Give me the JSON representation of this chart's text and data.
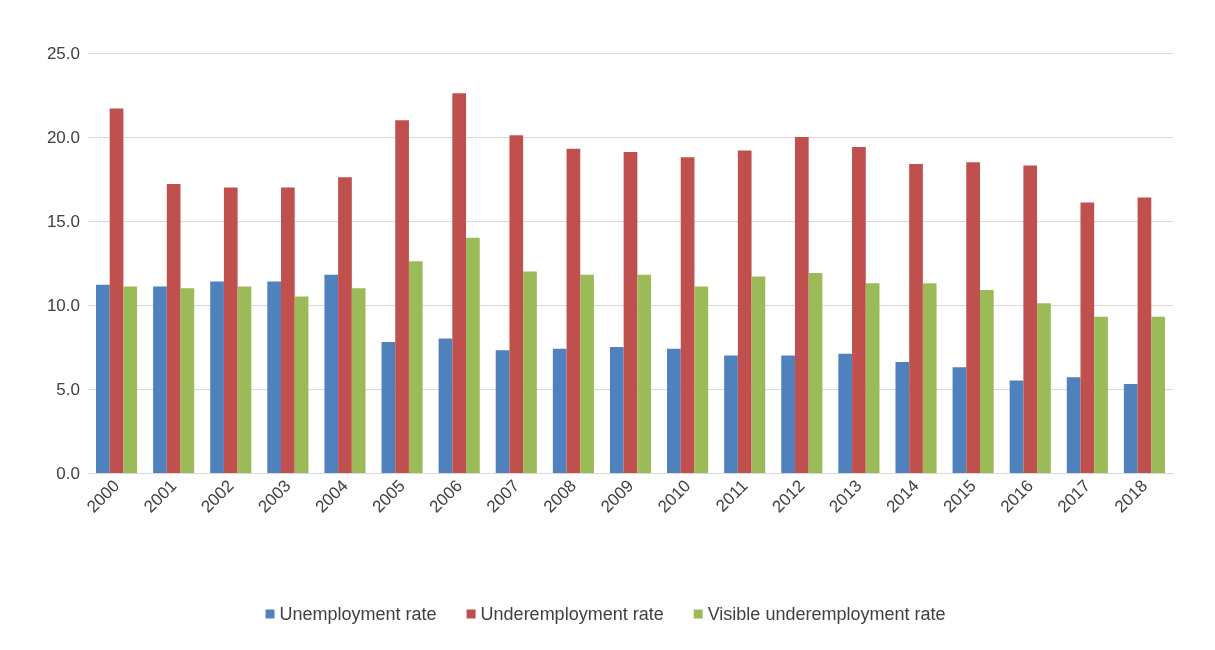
{
  "chart_data": {
    "type": "bar",
    "categories": [
      "2000",
      "2001",
      "2002",
      "2003",
      "2004",
      "2005",
      "2006",
      "2007",
      "2008",
      "2009",
      "2010",
      "2011",
      "2012",
      "2013",
      "2014",
      "2015",
      "2016",
      "2017",
      "2018"
    ],
    "series": [
      {
        "name": "Unemployment rate",
        "color": "#4f81bd",
        "values": [
          11.2,
          11.1,
          11.4,
          11.4,
          11.8,
          7.8,
          8.0,
          7.3,
          7.4,
          7.5,
          7.4,
          7.0,
          7.0,
          7.1,
          6.6,
          6.3,
          5.5,
          5.7,
          5.3
        ]
      },
      {
        "name": "Underemployment rate",
        "color": "#c0504d",
        "values": [
          21.7,
          17.2,
          17.0,
          17.0,
          17.6,
          21.0,
          22.6,
          20.1,
          19.3,
          19.1,
          18.8,
          19.2,
          20.0,
          19.4,
          18.4,
          18.5,
          18.3,
          16.1,
          16.4
        ]
      },
      {
        "name": "Visible underemployment rate",
        "color": "#9bbb59",
        "values": [
          11.1,
          11.0,
          11.1,
          10.5,
          11.0,
          12.6,
          14.0,
          12.0,
          11.8,
          11.8,
          11.1,
          11.7,
          11.9,
          11.3,
          11.3,
          10.9,
          10.1,
          9.3,
          9.3
        ]
      }
    ],
    "ylim": [
      0,
      25
    ],
    "yticks": [
      {
        "value": 0,
        "label": "0.0"
      },
      {
        "value": 5,
        "label": "5.0"
      },
      {
        "value": 10,
        "label": "10.0"
      },
      {
        "value": 15,
        "label": "15.0"
      },
      {
        "value": 20,
        "label": "20.0"
      },
      {
        "value": 25,
        "label": "25.0"
      }
    ],
    "grid": "y",
    "legend": "bottom"
  }
}
